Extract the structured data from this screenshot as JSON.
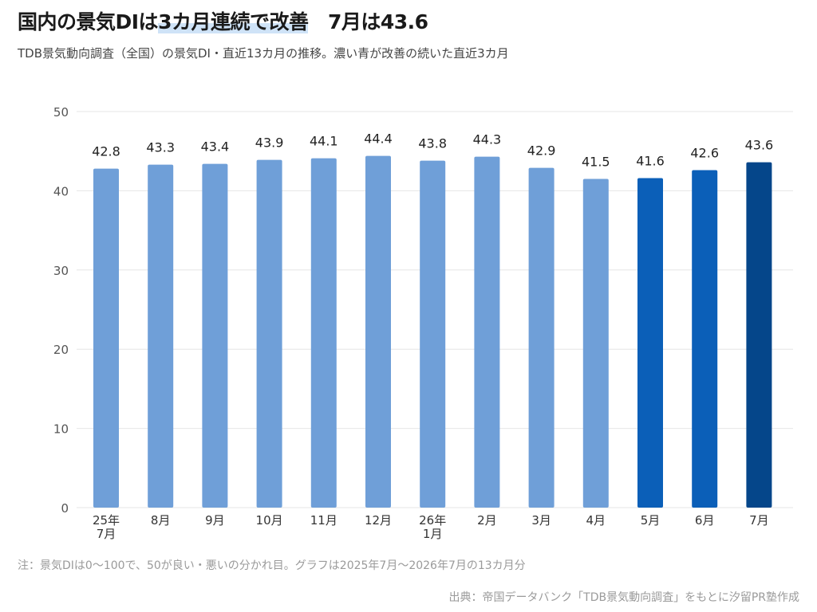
{
  "header": {
    "title_pre": "国内の景気DIは",
    "title_highlight": "3カ月連続で改善",
    "title_post": "　7月は43.6",
    "subtitle": "TDB景気動向調査（全国）の景気DI・直近13カ月の推移。濃い青が改善の続いた直近3カ月"
  },
  "footer": {
    "note": "注：景気DIは0〜100で、50が良い・悪いの分かれ目。グラフは2025年7月〜2026年7月の13カ月分",
    "source": "出典：帝国データバンク「TDB景気動向調査」をもとに汐留PR塾作成"
  },
  "colors": {
    "bar_default": "#6f9fd8",
    "bar_recent": "#0b5fb8",
    "bar_latest": "#05468a",
    "grid": "#e6e6e6",
    "axis_text": "#555555",
    "value_text": "#222222"
  },
  "chart_data": {
    "type": "bar",
    "categories": [
      [
        "25年",
        "7月"
      ],
      [
        "8月"
      ],
      [
        "9月"
      ],
      [
        "10月"
      ],
      [
        "11月"
      ],
      [
        "12月"
      ],
      [
        "26年",
        "1月"
      ],
      [
        "2月"
      ],
      [
        "3月"
      ],
      [
        "4月"
      ],
      [
        "5月"
      ],
      [
        "6月"
      ],
      [
        "7月"
      ]
    ],
    "values": [
      42.8,
      43.3,
      43.4,
      43.9,
      44.1,
      44.4,
      43.8,
      44.3,
      42.9,
      41.5,
      41.6,
      42.6,
      43.6
    ],
    "bar_color_keys": [
      "bar_default",
      "bar_default",
      "bar_default",
      "bar_default",
      "bar_default",
      "bar_default",
      "bar_default",
      "bar_default",
      "bar_default",
      "bar_default",
      "bar_recent",
      "bar_recent",
      "bar_latest"
    ],
    "ylim": [
      0,
      50
    ],
    "yticks": [
      0,
      10,
      20,
      30,
      40,
      50
    ],
    "grid": true,
    "data_labels": true
  }
}
